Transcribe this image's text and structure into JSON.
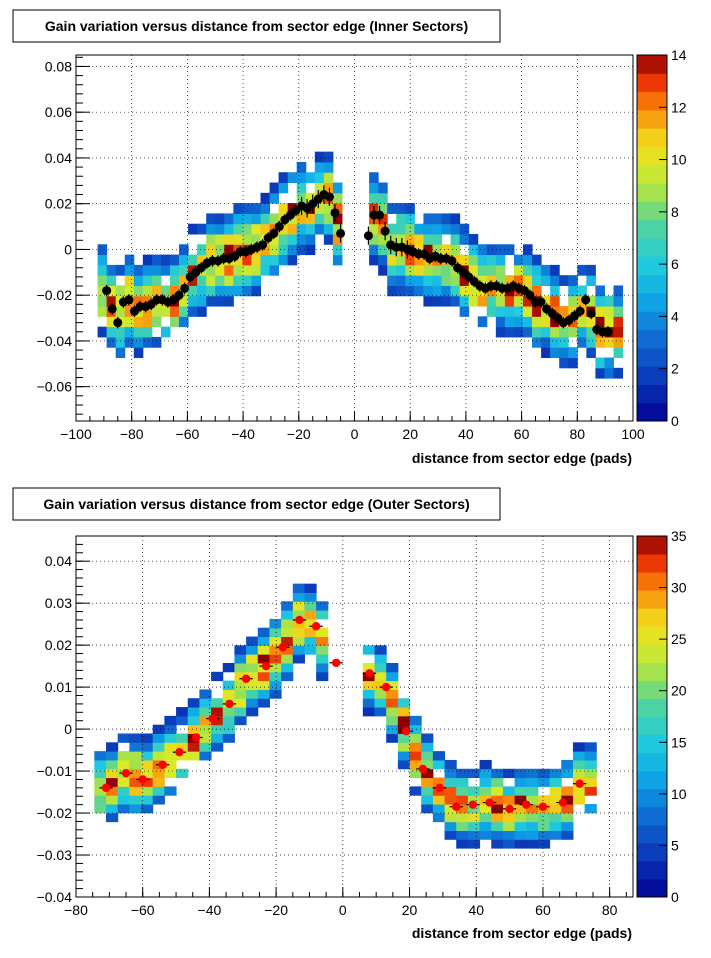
{
  "chart_data": [
    {
      "type": "heatmap",
      "title": "Gain variation versus distance from sector edge (Inner Sectors)",
      "xlabel": "distance from sector edge (pads)",
      "ylabel": "",
      "xlim": [
        -100,
        100
      ],
      "ylim": [
        -0.075,
        0.085
      ],
      "xticks": [
        -100,
        -80,
        -60,
        -40,
        -20,
        0,
        20,
        40,
        60,
        80,
        100
      ],
      "xtick_labels": [
        "−100",
        "−80",
        "−60",
        "−40",
        "−20",
        "0",
        "20",
        "40",
        "60",
        "80",
        "100"
      ],
      "yticks": [
        -0.06,
        -0.04,
        -0.02,
        0,
        0.02,
        0.04,
        0.06,
        0.08
      ],
      "ytick_labels": [
        "−0.06",
        "−0.04",
        "−0.02",
        "0",
        "0.02",
        "0.04",
        "0.06",
        "0.08"
      ],
      "grid": true,
      "colorbar": {
        "min": 0,
        "max": 14,
        "ticks": [
          0,
          2,
          4,
          6,
          8,
          10,
          12,
          14
        ]
      },
      "profile_color": "#000000",
      "profile": {
        "x": [
          -89,
          -87,
          -85,
          -83,
          -81,
          -79,
          -77,
          -75,
          -73,
          -71,
          -69,
          -67,
          -65,
          -63,
          -61,
          -59,
          -57,
          -55,
          -53,
          -51,
          -49,
          -47,
          -45,
          -43,
          -41,
          -39,
          -37,
          -35,
          -33,
          -31,
          -29,
          -27,
          -25,
          -23,
          -21,
          -19,
          -17,
          -15,
          -13,
          -11,
          -9,
          -7,
          -5,
          5,
          7,
          9,
          11,
          13,
          15,
          17,
          19,
          21,
          23,
          25,
          27,
          29,
          31,
          33,
          35,
          37,
          39,
          41,
          43,
          45,
          47,
          49,
          51,
          53,
          55,
          57,
          59,
          61,
          63,
          65,
          67,
          69,
          71,
          73,
          75,
          77,
          79,
          81,
          83,
          85,
          87,
          89,
          91
        ],
        "y": [
          -0.018,
          -0.026,
          -0.032,
          -0.023,
          -0.022,
          -0.027,
          -0.025,
          -0.025,
          -0.024,
          -0.022,
          -0.022,
          -0.023,
          -0.022,
          -0.02,
          -0.017,
          -0.012,
          -0.01,
          -0.008,
          -0.006,
          -0.005,
          -0.005,
          -0.004,
          -0.004,
          -0.003,
          -0.001,
          -0.001,
          0.0,
          0.001,
          0.002,
          0.005,
          0.007,
          0.01,
          0.013,
          0.015,
          0.017,
          0.019,
          0.018,
          0.02,
          0.022,
          0.024,
          0.023,
          0.016,
          0.007,
          0.006,
          0.015,
          0.015,
          0.008,
          0.002,
          0.001,
          0.001,
          0.0,
          -0.001,
          -0.002,
          -0.002,
          -0.004,
          -0.003,
          -0.004,
          -0.004,
          -0.005,
          -0.008,
          -0.01,
          -0.012,
          -0.014,
          -0.016,
          -0.017,
          -0.016,
          -0.016,
          -0.017,
          -0.017,
          -0.016,
          -0.017,
          -0.018,
          -0.02,
          -0.023,
          -0.023,
          -0.026,
          -0.028,
          -0.03,
          -0.032,
          -0.031,
          -0.029,
          -0.027,
          -0.022,
          -0.028,
          -0.035,
          -0.036,
          -0.036
        ]
      }
    },
    {
      "type": "heatmap",
      "title": "Gain variation versus distance from sector edge (Outer Sectors)",
      "xlabel": "distance from sector edge (pads)",
      "ylabel": "",
      "xlim": [
        -80,
        87
      ],
      "ylim": [
        -0.04,
        0.046
      ],
      "xticks": [
        -80,
        -60,
        -40,
        -20,
        0,
        20,
        40,
        60,
        80
      ],
      "xtick_labels": [
        "−80",
        "−60",
        "−40",
        "−20",
        "0",
        "20",
        "40",
        "60",
        "80"
      ],
      "yticks": [
        -0.04,
        -0.03,
        -0.02,
        -0.01,
        0,
        0.01,
        0.02,
        0.03,
        0.04
      ],
      "ytick_labels": [
        "−0.04",
        "−0.03",
        "−0.02",
        "−0.01",
        "0",
        "0.01",
        "0.02",
        "0.03",
        "0.04"
      ],
      "grid": true,
      "colorbar": {
        "min": 0,
        "max": 35,
        "ticks": [
          0,
          5,
          10,
          15,
          20,
          25,
          30,
          35
        ]
      },
      "profile_color": "#ff0000",
      "profile": {
        "x": [
          -71,
          -65,
          -60,
          -54,
          -49,
          -44,
          -39,
          -34,
          -29,
          -23,
          -18,
          -13,
          -8,
          -2,
          8,
          13,
          19,
          24,
          29,
          34,
          39,
          44,
          50,
          55,
          60,
          66,
          71
        ],
        "y": [
          -0.014,
          -0.0105,
          -0.012,
          -0.0085,
          -0.0055,
          -0.002,
          0.0025,
          0.006,
          0.012,
          0.015,
          0.0195,
          0.026,
          0.0245,
          0.0158,
          0.0133,
          0.01,
          -0.0005,
          -0.0095,
          -0.014,
          -0.0185,
          -0.018,
          -0.0175,
          -0.019,
          -0.018,
          -0.0185,
          -0.0175,
          -0.013
        ]
      }
    }
  ]
}
